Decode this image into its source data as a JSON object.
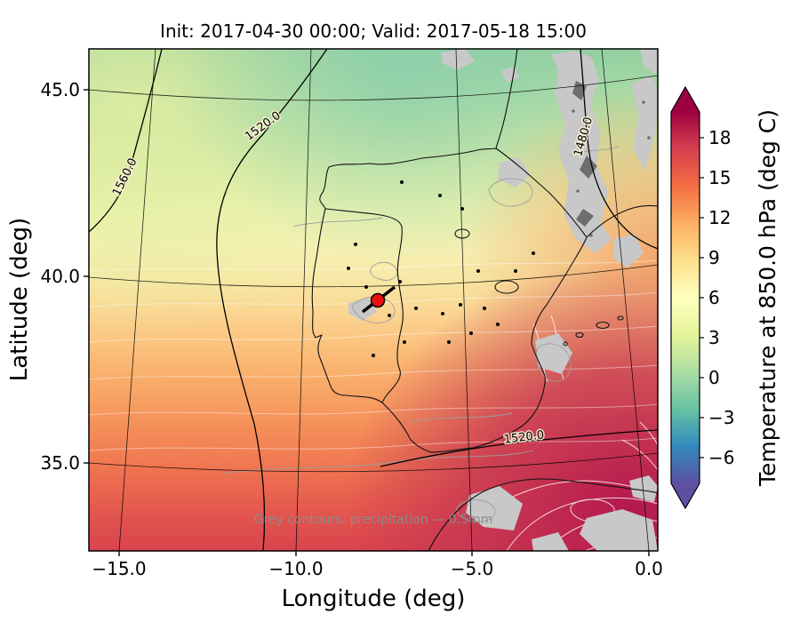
{
  "figure": {
    "kind": "forecast weather map",
    "background": "#ffffff"
  },
  "chart_data": {
    "type": "heatmap",
    "subtype": "filled-contour temperature map with geopotential height contours and precipitation contours over the Iberian Peninsula",
    "title": "Init: 2017-04-30 00:00; Valid: 2017-05-18 15:00",
    "xlabel": "Longitude (deg)",
    "ylabel": "Latitude (deg)",
    "xticks": [
      "−15.0",
      "−10.0",
      "−5.0",
      "0.0"
    ],
    "xtick_values": [
      -15,
      -10,
      -5,
      0
    ],
    "yticks": [
      "45.0",
      "40.0",
      "35.0"
    ],
    "ytick_values": [
      45,
      40,
      35
    ],
    "xlim": [
      -15.9,
      0.3
    ],
    "ylim": [
      32.6,
      46.1
    ],
    "grid": true,
    "annotation": "Grey contours: precipitation — 0.5mm",
    "annotation_color": "#8c8c8c",
    "marker": {
      "lon": -7.7,
      "lat": 39.4,
      "color": "#e81310",
      "shape": "red circle with black edge and black slash"
    },
    "geopotential_contour_labels": [
      {
        "text": "1560.0",
        "lon": -14.7,
        "lat": 42.6
      },
      {
        "text": "1520.0",
        "lon": -10.9,
        "lat": 44.0
      },
      {
        "text": "1480.0",
        "lon": -1.8,
        "lat": 43.7
      },
      {
        "text": "1520.0",
        "lon": -3.5,
        "lat": 35.6
      }
    ],
    "colorbar": {
      "label": "Temperature at 850.0 hPa (deg C)",
      "ticks": [
        "18",
        "15",
        "12",
        "9",
        "6",
        "3",
        "0",
        "−3",
        "−6"
      ],
      "tick_values": [
        18,
        15,
        12,
        9,
        6,
        3,
        0,
        -3,
        -6
      ],
      "extend": "both",
      "stops": [
        {
          "offset": 0.0,
          "color": "#5e4fa2"
        },
        {
          "offset": 0.1,
          "color": "#3288bd"
        },
        {
          "offset": 0.2,
          "color": "#66c2a5"
        },
        {
          "offset": 0.3,
          "color": "#abdda4"
        },
        {
          "offset": 0.4,
          "color": "#e6f598"
        },
        {
          "offset": 0.5,
          "color": "#ffffbf"
        },
        {
          "offset": 0.6,
          "color": "#fee08b"
        },
        {
          "offset": 0.7,
          "color": "#fdae61"
        },
        {
          "offset": 0.8,
          "color": "#f46d43"
        },
        {
          "offset": 0.9,
          "color": "#d53e4f"
        },
        {
          "offset": 1.0,
          "color": "#9e0142"
        }
      ]
    },
    "approx_temperature_samples": [
      {
        "lon": -12.0,
        "lat": 45.0,
        "temp_c": 2
      },
      {
        "lon": -6.0,
        "lat": 44.5,
        "temp_c": 1
      },
      {
        "lon": -14.0,
        "lat": 42.0,
        "temp_c": 5
      },
      {
        "lon": -8.0,
        "lat": 41.0,
        "temp_c": 7
      },
      {
        "lon": -4.0,
        "lat": 40.0,
        "temp_c": 9
      },
      {
        "lon": -12.0,
        "lat": 37.0,
        "temp_c": 12
      },
      {
        "lon": -6.0,
        "lat": 37.0,
        "temp_c": 13
      },
      {
        "lon": -3.0,
        "lat": 35.0,
        "temp_c": 16
      },
      {
        "lon": -1.0,
        "lat": 33.5,
        "temp_c": 20
      }
    ]
  }
}
